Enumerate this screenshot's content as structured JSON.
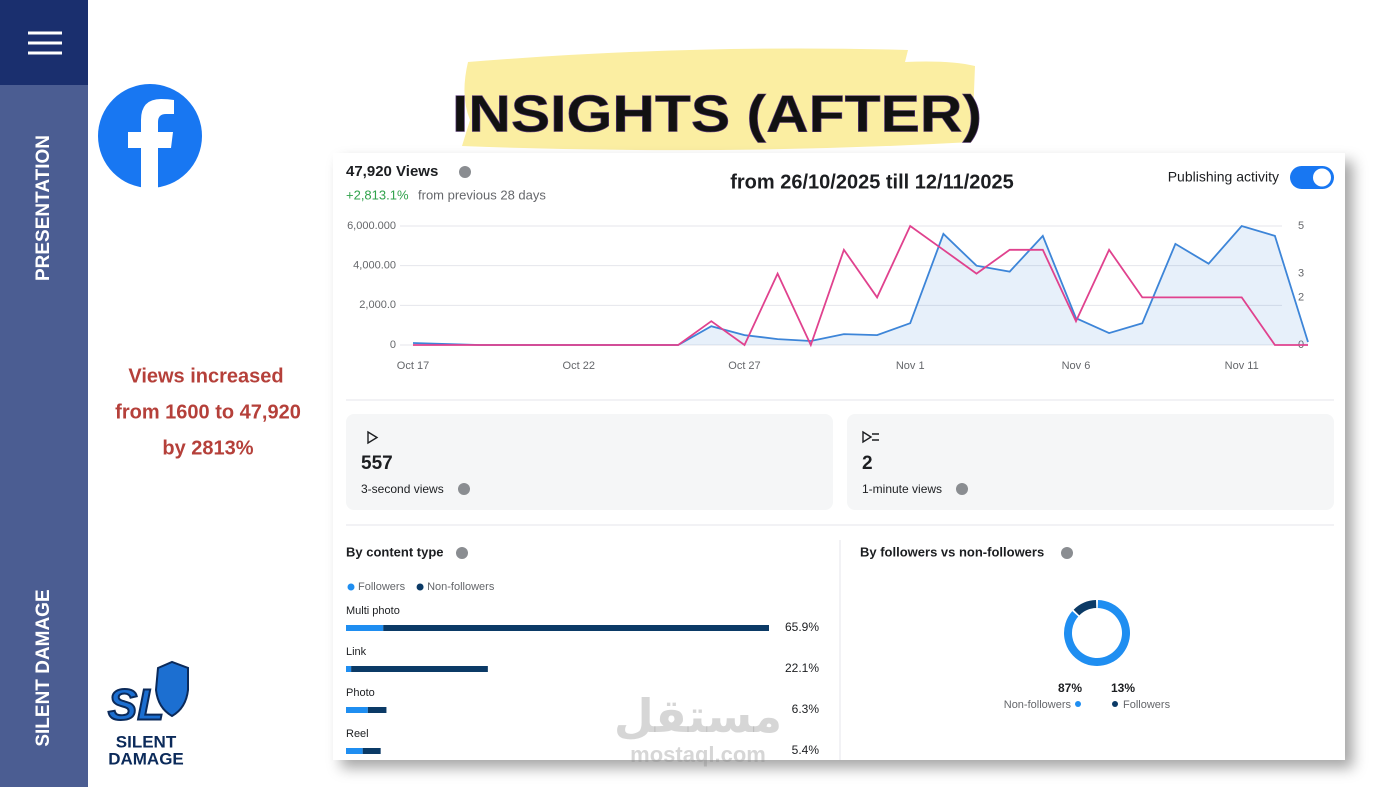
{
  "slide": {
    "title": "INSIGHTS (AFTER)",
    "sidebar_top": "PRESENTATION",
    "sidebar_bottom": "SILENT DAMAGE",
    "logo_initials": "SL",
    "logo_text": [
      "SILENT",
      "DAMAGE"
    ],
    "note": [
      "Views increased",
      "from 1600 to  47,920",
      "by 2813%"
    ],
    "date_range": "from 26/10/2025 till 12/11/2025",
    "watermark": [
      "مستقل",
      "mostaql.com"
    ]
  },
  "insights": {
    "headline": "47,920 Views",
    "change": "+2,813.1%",
    "change_text": "from previous 28 days",
    "toggle_label": "Publishing activity",
    "cards": [
      {
        "value": "557",
        "label": "3-second views"
      },
      {
        "value": "2",
        "label": "1-minute views"
      }
    ]
  },
  "chart_data": [
    {
      "type": "line",
      "categories": [
        "Oct 17",
        null,
        null,
        null,
        null,
        "Oct 22",
        null,
        null,
        null,
        null,
        "Oct 27",
        null,
        null,
        null,
        null,
        "Nov 1",
        null,
        null,
        null,
        null,
        "Nov 6",
        null,
        null,
        null,
        null,
        "Nov 11",
        null,
        null
      ],
      "series": [
        {
          "color": "#3d85d8",
          "values": [
            100,
            50,
            0,
            0,
            0,
            0,
            0,
            0,
            0,
            950,
            500,
            300,
            200,
            550,
            500,
            1100,
            5600,
            4000,
            3700,
            5500,
            1350,
            600,
            1100,
            5100,
            4100,
            6000,
            5500,
            150
          ]
        },
        {
          "color": "#e0428e",
          "axis": "y2",
          "values": [
            0,
            0,
            0,
            0,
            0,
            0,
            0,
            0,
            0,
            1,
            0,
            3,
            0,
            4,
            2,
            5,
            4,
            3,
            4,
            4,
            1,
            4,
            2,
            2,
            2,
            2,
            0,
            0
          ]
        }
      ],
      "ylim": [
        0,
        6000
      ],
      "yticks": [
        0,
        {
          "value": 2000,
          "label": "2,000.0"
        },
        {
          "value": 4000,
          "label": "4,000.00"
        },
        {
          "value": 6000,
          "label": "6,000.000"
        }
      ],
      "y2lim": [
        0,
        5
      ],
      "y2ticks": [
        0,
        2,
        3,
        5
      ],
      "grid": true
    },
    {
      "type": "bar",
      "title": "By content type",
      "orientation": "horizontal",
      "stacked": true,
      "categories": [
        "Multi photo",
        "Link",
        "Photo",
        "Reel"
      ],
      "series": [
        {
          "name": "Followers",
          "color": "#1f8ef1",
          "values": [
            5.8,
            0.8,
            3.4,
            2.6
          ]
        },
        {
          "name": "Non-followers",
          "color": "#0b3a66",
          "values": [
            60.1,
            21.3,
            2.9,
            2.8
          ]
        }
      ],
      "totals": [
        65.9,
        22.1,
        6.3,
        5.4
      ],
      "total_labels": [
        "65.9%",
        "22.1%",
        "6.3%",
        "5.4%"
      ]
    },
    {
      "type": "pie",
      "title": "By followers vs non-followers",
      "categories": [
        "Non-followers",
        "Followers"
      ],
      "values": [
        87,
        13
      ],
      "value_labels": [
        "87%",
        "13%"
      ],
      "colors": [
        "#1f8ef1",
        "#0b3a66"
      ]
    }
  ]
}
